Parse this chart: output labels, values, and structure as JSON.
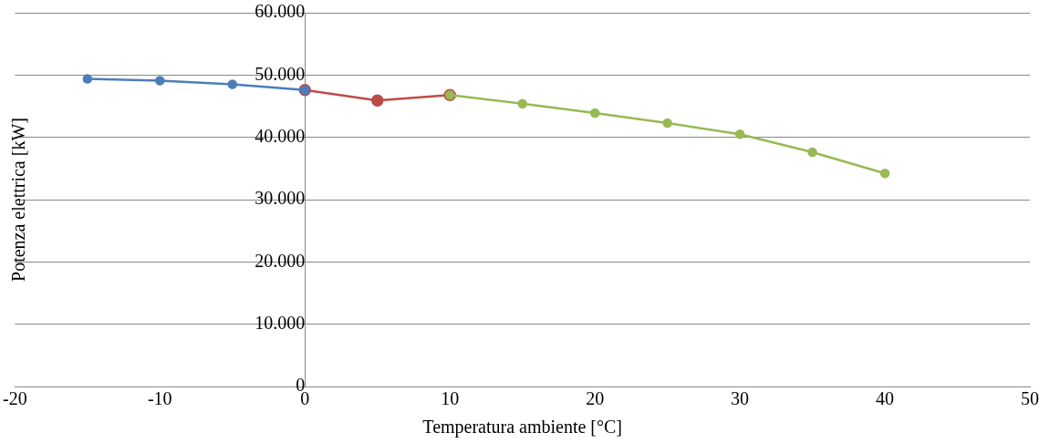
{
  "chart_data": {
    "type": "line",
    "xlabel": "Temperatura ambiente [°C]",
    "ylabel": "Potenza elettrica [kW]",
    "xlim": [
      -20,
      50
    ],
    "xticks": [
      -20,
      -10,
      0,
      10,
      20,
      30,
      40,
      50
    ],
    "ylim": [
      0,
      60000
    ],
    "yticks": [
      {
        "value": 0,
        "label": "0"
      },
      {
        "value": 10000,
        "label": "10.000"
      },
      {
        "value": 20000,
        "label": "20.000"
      },
      {
        "value": 30000,
        "label": "30.000"
      },
      {
        "value": 40000,
        "label": "40.000"
      },
      {
        "value": 50000,
        "label": "50.000"
      },
      {
        "value": 60000,
        "label": "60.000"
      }
    ],
    "grid": "y",
    "marker": "circle",
    "line_style": "solid",
    "series": [
      {
        "color": "#be4b48",
        "x": [
          0,
          5,
          10
        ],
        "values": [
          47600,
          45900,
          46800
        ]
      },
      {
        "color": "#4a7ebb",
        "x": [
          -15,
          -10,
          -5,
          0
        ],
        "values": [
          49400,
          49100,
          48500,
          47600
        ]
      },
      {
        "color": "#98b954",
        "x": [
          10,
          15,
          20,
          25,
          30,
          35,
          40
        ],
        "values": [
          46800,
          45400,
          43900,
          42300,
          40500,
          37600,
          34200
        ]
      }
    ]
  }
}
